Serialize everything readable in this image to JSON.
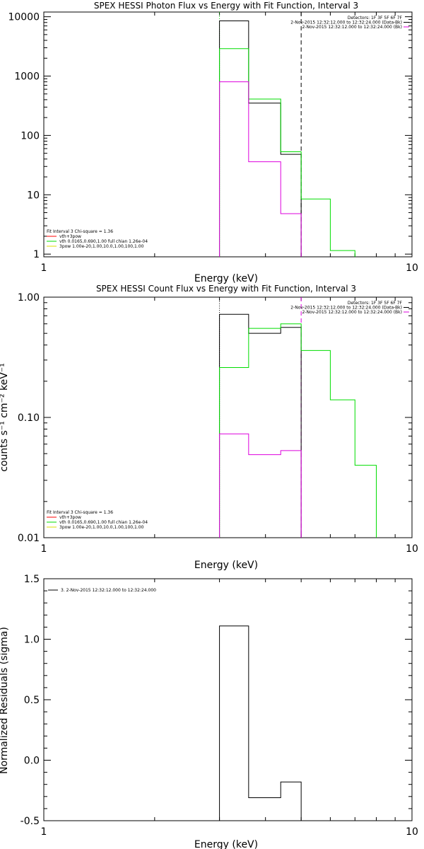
{
  "colors": {
    "data": "#000000",
    "model": "#00dd00",
    "background": "#dd00dd",
    "bg_line": "#ff0000",
    "dash": "#000000"
  },
  "chart_data": [
    {
      "type": "line",
      "title": "SPEX HESSI Photon Flux vs Energy with Fit Function, Interval 3",
      "xlabel": "Energy (keV)",
      "ylabel": "",
      "xscale": "log",
      "yscale": "log",
      "xlim": [
        1,
        10
      ],
      "ylim": [
        0.9,
        12000
      ],
      "x_ticks": [
        1,
        10
      ],
      "x_tick_labels": [
        "1",
        "10"
      ],
      "y_ticks": [
        1,
        10,
        100,
        1000,
        10000
      ],
      "y_tick_labels": [
        "1",
        "10",
        "100",
        "1000",
        "10000"
      ],
      "vlines": [
        {
          "x": 3.0,
          "style": "dotted",
          "color": "#00dd00"
        },
        {
          "x": 5.0,
          "style": "dashed",
          "color": "#000000"
        }
      ],
      "series": [
        {
          "key": "data",
          "color": "#000000",
          "steps": [
            [
              3.0,
              3.6,
              8500
            ],
            [
              3.6,
              4.4,
              350
            ],
            [
              4.4,
              5.0,
              48
            ]
          ]
        },
        {
          "key": "model",
          "color": "#00dd00",
          "steps": [
            [
              3.0,
              3.6,
              2900
            ],
            [
              3.6,
              4.4,
              410
            ],
            [
              4.4,
              5.0,
              53
            ],
            [
              5.0,
              6.0,
              8.5
            ],
            [
              6.0,
              7.0,
              1.15
            ]
          ]
        },
        {
          "key": "bg",
          "color": "#dd00dd",
          "steps": [
            [
              3.0,
              3.6,
              800
            ],
            [
              3.6,
              4.4,
              36
            ],
            [
              4.4,
              5.0,
              4.8
            ]
          ]
        }
      ],
      "top_legend": [
        {
          "text": "Detectors: 1F 3F 5F 6F 7F",
          "color": "#000000"
        },
        {
          "text": "2-Nov-2015 12:32:12.000 to 12:32:24.000 (Data-Bk)",
          "color": "#000000"
        },
        {
          "text": "2-Nov-2015 12:32:12.000 to 12:32:24.000 (Bk)",
          "color": "#dd00dd"
        }
      ],
      "bottom_legend": [
        {
          "text": "Fit Interval 3   Chi-square = 1.36",
          "color": "#000000"
        },
        {
          "text": "vth+3pow",
          "color": "#ff0000"
        },
        {
          "text": "vth 0.0165,0.690,1.00  full chian 1.26e-04",
          "color": "#00dd00"
        },
        {
          "text": "3pow 1.00e-20,1.00,10.0,1.00,100,1.00",
          "color": "#dddd00"
        }
      ]
    },
    {
      "type": "line",
      "title": "SPEX HESSI Count Flux vs Energy with Fit Function, Interval 3",
      "xlabel": "Energy (keV)",
      "ylabel": "counts s⁻¹ cm⁻² keV⁻¹",
      "xscale": "log",
      "yscale": "log",
      "xlim": [
        1,
        10
      ],
      "ylim": [
        0.01,
        1.0
      ],
      "x_ticks": [
        1,
        10
      ],
      "x_tick_labels": [
        "1",
        "10"
      ],
      "y_ticks": [
        0.01,
        0.1,
        1.0
      ],
      "y_tick_labels": [
        "0.01",
        "0.10",
        "1.00"
      ],
      "vlines": [
        {
          "x": 3.0,
          "style": "dotted",
          "color": "#000000"
        },
        {
          "x": 5.0,
          "style": "dashed",
          "color": "#dd00dd"
        }
      ],
      "series": [
        {
          "key": "data",
          "color": "#000000",
          "steps": [
            [
              3.0,
              3.6,
              0.72
            ],
            [
              3.6,
              4.4,
              0.5
            ],
            [
              4.4,
              5.0,
              0.56
            ]
          ]
        },
        {
          "key": "model",
          "color": "#00dd00",
          "steps": [
            [
              3.0,
              3.6,
              0.26
            ],
            [
              3.6,
              4.4,
              0.55
            ],
            [
              4.4,
              5.0,
              0.6
            ],
            [
              5.0,
              6.0,
              0.36
            ],
            [
              6.0,
              7.0,
              0.14
            ],
            [
              7.0,
              8.0,
              0.04
            ]
          ]
        },
        {
          "key": "bg",
          "color": "#dd00dd",
          "steps": [
            [
              3.0,
              3.6,
              0.073
            ],
            [
              3.6,
              4.4,
              0.049
            ],
            [
              4.4,
              5.0,
              0.053
            ]
          ]
        }
      ],
      "top_legend": [
        {
          "text": "Detectors: 1F 3F 5F 6F 7F",
          "color": "#000000"
        },
        {
          "text": "2-Nov-2015 12:32:12.000 to 12:32:24.000 (Data-Bk)",
          "color": "#000000"
        },
        {
          "text": "2-Nov-2015 12:32:12.000 to 12:32:24.000 (Bk)",
          "color": "#dd00dd"
        }
      ],
      "bottom_legend": [
        {
          "text": "Fit Interval 3   Chi-square = 1.36",
          "color": "#000000"
        },
        {
          "text": "vth+3pow",
          "color": "#ff0000"
        },
        {
          "text": "vth 0.0165,0.690,1.00  full chian 1.26e-04",
          "color": "#00dd00"
        },
        {
          "text": "3pow 1.00e-20,1.00,10.0,1.00,100,1.00",
          "color": "#dddd00"
        }
      ]
    },
    {
      "type": "line",
      "title": "",
      "xlabel": "Energy (keV)",
      "ylabel": "Normalized Residuals (sigma)",
      "xscale": "log",
      "yscale": "linear",
      "xlim": [
        1,
        10
      ],
      "ylim": [
        -0.5,
        1.5
      ],
      "x_ticks": [
        1,
        10
      ],
      "x_tick_labels": [
        "1",
        "10"
      ],
      "y_ticks": [
        -0.5,
        0.0,
        0.5,
        1.0,
        1.5
      ],
      "y_tick_labels": [
        "-0.5",
        "0.0",
        "0.5",
        "1.0",
        "1.5"
      ],
      "vlines": [],
      "series": [
        {
          "key": "residuals",
          "color": "#000000",
          "steps": [
            [
              3.0,
              3.6,
              1.11
            ],
            [
              3.6,
              4.4,
              -0.31
            ],
            [
              4.4,
              5.0,
              -0.18
            ]
          ]
        }
      ],
      "top_legend": [],
      "bottom_legend": [],
      "residual_legend": "3. 2-Nov-2015 12:32:12.000 to 12:32:24.000"
    }
  ]
}
